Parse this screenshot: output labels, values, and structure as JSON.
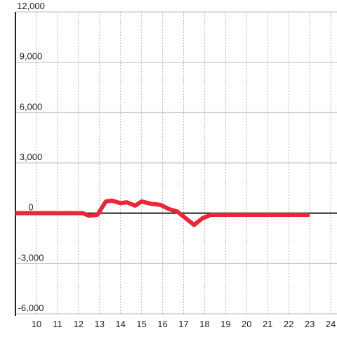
{
  "chart_data": {
    "type": "line",
    "x": [
      9,
      12.2,
      12.5,
      12.9,
      13.3,
      13.6,
      14,
      14.3,
      14.7,
      15,
      15.5,
      15.9,
      16.3,
      16.7,
      17.1,
      17.5,
      17.9,
      18.3,
      23
    ],
    "series": [
      {
        "color": "#e8283a",
        "values": [
          0,
          0,
          -150,
          -100,
          700,
          750,
          600,
          650,
          450,
          700,
          550,
          500,
          250,
          100,
          -300,
          -700,
          -300,
          -100,
          -100
        ]
      }
    ],
    "xlim": [
      9,
      24.3
    ],
    "xticks": [
      10,
      11,
      12,
      13,
      14,
      15,
      16,
      17,
      18,
      19,
      20,
      21,
      22,
      23,
      24
    ],
    "ylim": [
      -6000,
      12000
    ],
    "yticks": [
      {
        "value": -6000,
        "label": "-6,000"
      },
      {
        "value": -3000,
        "label": "-3,000"
      },
      0,
      {
        "value": 3000,
        "label": "3,000"
      },
      {
        "value": 6000,
        "label": "6,000"
      },
      {
        "value": 9000,
        "label": "9,000"
      },
      {
        "value": 12000,
        "label": "12,000"
      }
    ],
    "grid": true
  }
}
